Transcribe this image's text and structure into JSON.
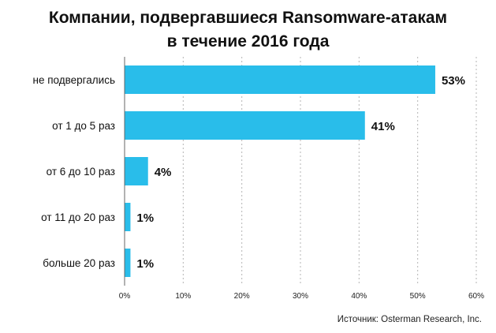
{
  "chart_data": {
    "type": "bar",
    "orientation": "horizontal",
    "title_lines": [
      "Компании, подвергавшиеся Ransomware-атакам",
      "в течение 2016 года"
    ],
    "categories": [
      "не подвергались",
      "от 1 до 5 раз",
      "от 6 до 10 раз",
      "от 11 до 20 раз",
      "больше 20 раз"
    ],
    "values": [
      53,
      41,
      4,
      1,
      1
    ],
    "value_labels": [
      "53%",
      "41%",
      "4%",
      "1%",
      "1%"
    ],
    "xlim": [
      0,
      60
    ],
    "x_ticks": [
      0,
      10,
      20,
      30,
      40,
      50,
      60
    ],
    "x_tick_labels": [
      "0%",
      "10%",
      "20%",
      "30%",
      "40%",
      "50%",
      "60%"
    ],
    "grid": "vertical dashed",
    "bar_color": "#29bdea",
    "source": "Источник: Osterman Research, Inc."
  }
}
